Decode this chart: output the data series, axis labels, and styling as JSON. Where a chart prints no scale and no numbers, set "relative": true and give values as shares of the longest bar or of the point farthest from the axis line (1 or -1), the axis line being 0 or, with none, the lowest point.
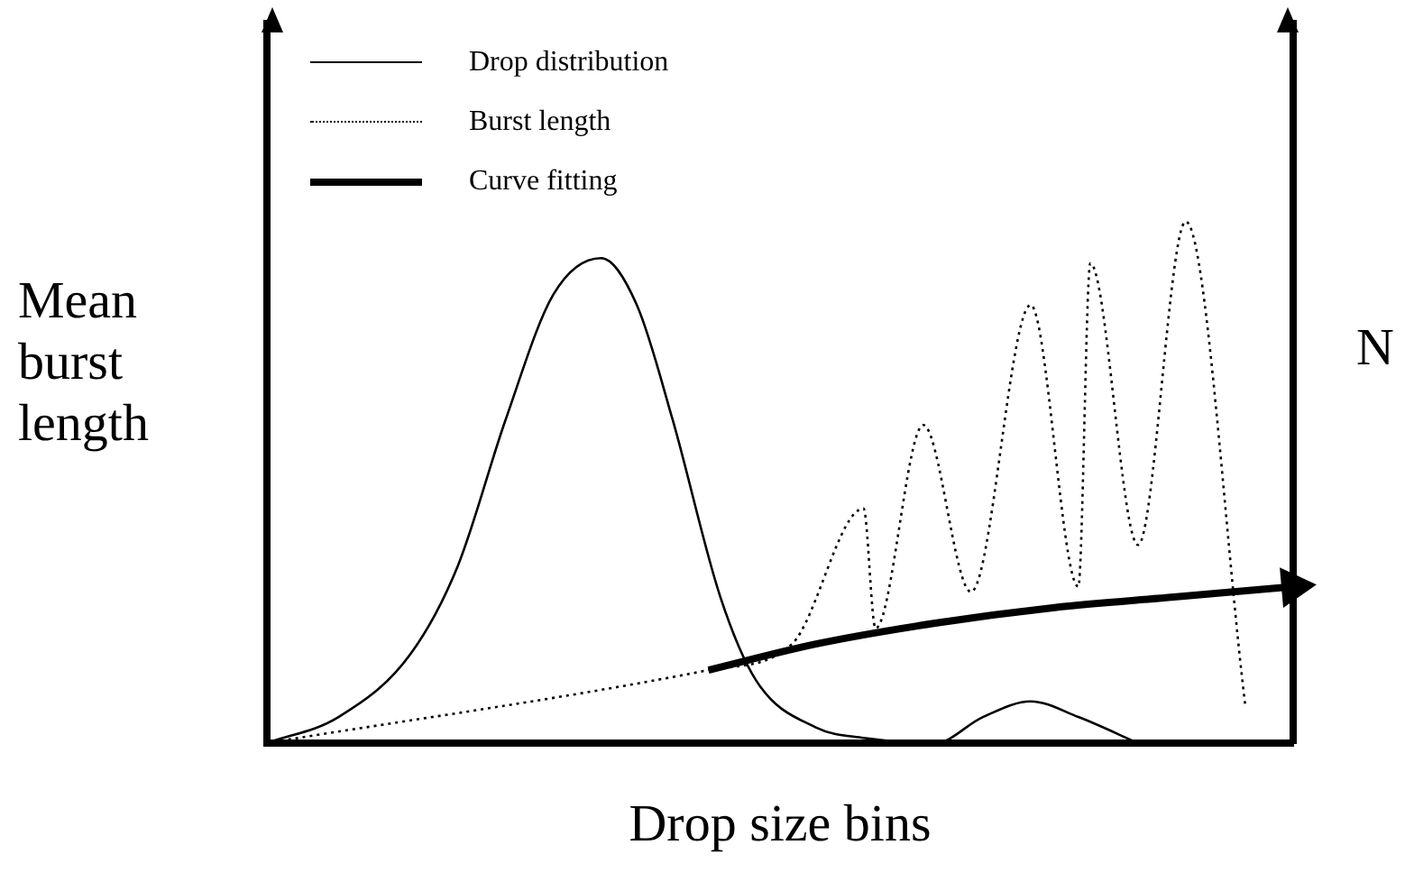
{
  "chart_data": {
    "type": "line",
    "relative": true,
    "xlabel": "Drop size bins",
    "ylabel": "Mean burst length",
    "y2label": "N",
    "legend": "top left",
    "categories": [
      null,
      null,
      null,
      null,
      null,
      null,
      null,
      null,
      null,
      null,
      null,
      null,
      null,
      null,
      null,
      null,
      null,
      null,
      null,
      null,
      null,
      null,
      null,
      null,
      null,
      null,
      null,
      null,
      null,
      null,
      null,
      null,
      null,
      null,
      null,
      null,
      null,
      null,
      null,
      null,
      null,
      null,
      null,
      null,
      null,
      null,
      null,
      null,
      null,
      null,
      null,
      null,
      null,
      null,
      null,
      null,
      null,
      null,
      null,
      null,
      null,
      null,
      null,
      null,
      null,
      null,
      null,
      null,
      null,
      null,
      null,
      null,
      null,
      null,
      null,
      null,
      null,
      null,
      null,
      null,
      null,
      null,
      null,
      null,
      null,
      null,
      null
    ],
    "series": [
      {
        "name": "Drop distribution",
        "color": "#000000",
        "line_style": "solid",
        "values": [
          0,
          null,
          null,
          null,
          null,
          null,
          0.05,
          null,
          null,
          null,
          null,
          null,
          0.17,
          null,
          null,
          null,
          0.34,
          null,
          null,
          null,
          0.62,
          null,
          null,
          null,
          0.86,
          null,
          null,
          null,
          0.93,
          null,
          null,
          0.84,
          null,
          null,
          0.62,
          null,
          null,
          null,
          0.28,
          null,
          null,
          0.12,
          null,
          null,
          null,
          null,
          0.03,
          null,
          null,
          null,
          0.01,
          null,
          null,
          null,
          null,
          null,
          0,
          null,
          null,
          null,
          0.05,
          null,
          null,
          null,
          0.08,
          null,
          null,
          null,
          0.05,
          null,
          null,
          null,
          null,
          0,
          null,
          null,
          null,
          null,
          null,
          null,
          null,
          null,
          null,
          null,
          null,
          null,
          null
        ]
      },
      {
        "name": "Burst length",
        "color": "#000000",
        "line_style": "dotted",
        "values": [
          0,
          null,
          null,
          null,
          null,
          null,
          null,
          null,
          null,
          null,
          null,
          null,
          null,
          null,
          null,
          null,
          null,
          null,
          null,
          null,
          null,
          null,
          null,
          null,
          null,
          null,
          null,
          null,
          null,
          null,
          null,
          null,
          null,
          null,
          null,
          null,
          null,
          0.14,
          null,
          null,
          null,
          null,
          null,
          null,
          0.19,
          null,
          null,
          null,
          null,
          null,
          0.45,
          0.22,
          null,
          null,
          null,
          0.61,
          null,
          null,
          null,
          0.29,
          null,
          null,
          null,
          null,
          0.84,
          null,
          null,
          null,
          0.3,
          0.92,
          null,
          null,
          null,
          0.38,
          null,
          null,
          null,
          1,
          null,
          null,
          null,
          null,
          0.07,
          null,
          null,
          null,
          null
        ]
      },
      {
        "name": "Curve fitting",
        "color": "#000000",
        "line_style": "solid",
        "values": [
          null,
          null,
          null,
          null,
          null,
          null,
          null,
          null,
          null,
          null,
          null,
          null,
          null,
          null,
          null,
          null,
          null,
          null,
          null,
          null,
          null,
          null,
          null,
          null,
          null,
          null,
          null,
          null,
          null,
          null,
          null,
          null,
          null,
          null,
          null,
          null,
          null,
          0.14,
          null,
          null,
          null,
          null,
          null,
          null,
          null,
          null,
          0.19,
          null,
          null,
          null,
          null,
          null,
          null,
          null,
          null,
          null,
          0.23,
          null,
          null,
          null,
          null,
          null,
          null,
          null,
          null,
          null,
          0.26,
          null,
          null,
          null,
          null,
          null,
          null,
          null,
          null,
          null,
          0.28,
          null,
          null,
          null,
          null,
          null,
          null,
          null,
          null,
          null,
          0.3
        ]
      }
    ]
  }
}
